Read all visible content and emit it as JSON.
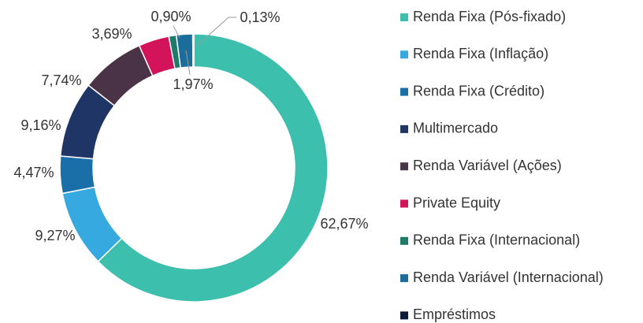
{
  "chart_data": {
    "type": "donut",
    "categories": [
      "Renda Fixa (Pós-fixado)",
      "Renda Fixa (Inflação)",
      "Renda Fixa (Crédito)",
      "Multimercado",
      "Renda Variável (Ações)",
      "Private Equity",
      "Renda Fixa (Internacional)",
      "Renda Variável (Internacional)",
      "Empréstimos"
    ],
    "values": [
      62.67,
      9.27,
      4.47,
      9.16,
      7.74,
      3.69,
      0.9,
      1.97,
      0.13
    ],
    "value_labels": [
      "62,67%",
      "9,27%",
      "4,47%",
      "9,16%",
      "7,74%",
      "3,69%",
      "0,90%",
      "1,97%",
      "0,13%"
    ],
    "colors": [
      "#3dbfad",
      "#36a9e1",
      "#1a6fa8",
      "#1f3566",
      "#4a3347",
      "#d4145a",
      "#1e7a6a",
      "#1b6e9b",
      "#0d1a3a"
    ],
    "legend": "right"
  }
}
